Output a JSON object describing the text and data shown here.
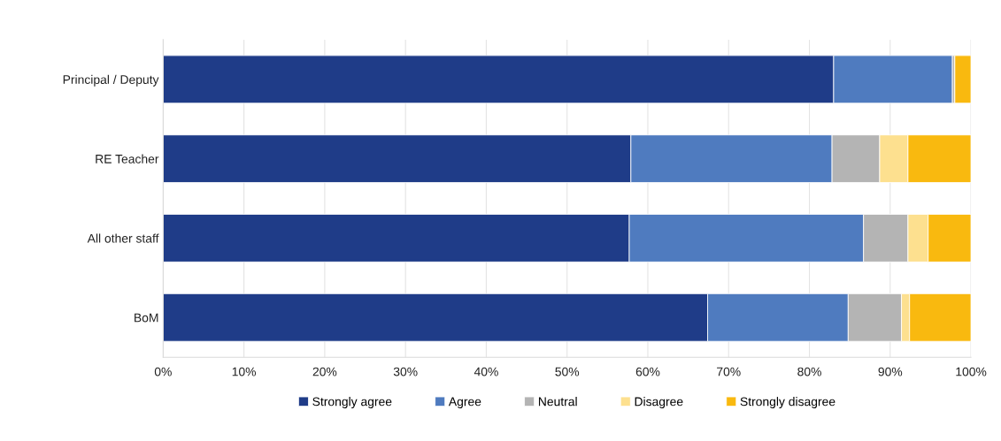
{
  "chart_data": {
    "type": "bar",
    "orientation": "horizontal",
    "stacked": true,
    "categories": [
      "Principal / Deputy",
      "RE Teacher",
      "All other staff",
      "BoM"
    ],
    "series": [
      {
        "name": "Strongly agree",
        "color": "#1f3c88",
        "values": [
          83.0,
          57.9,
          57.7,
          67.4
        ]
      },
      {
        "name": "Agree",
        "color": "#4f7bbf",
        "values": [
          14.7,
          24.9,
          29.0,
          17.4
        ]
      },
      {
        "name": "Neutral",
        "color": "#b4b4b4",
        "values": [
          0.3,
          5.9,
          5.5,
          6.6
        ]
      },
      {
        "name": "Disagree",
        "color": "#fde08f",
        "values": [
          0,
          3.5,
          2.5,
          1.0
        ]
      },
      {
        "name": "Strongly disagree",
        "color": "#f9b90f",
        "values": [
          2.0,
          7.8,
          5.3,
          7.6
        ]
      }
    ],
    "xlim": [
      0,
      100
    ],
    "xticks": [
      {
        "value": 0,
        "label": "0%"
      },
      {
        "value": 10,
        "label": "10%"
      },
      {
        "value": 20,
        "label": "20%"
      },
      {
        "value": 30,
        "label": "30%"
      },
      {
        "value": 40,
        "label": "40%"
      },
      {
        "value": 50,
        "label": "50%"
      },
      {
        "value": 60,
        "label": "60%"
      },
      {
        "value": 70,
        "label": "70%"
      },
      {
        "value": 80,
        "label": "80%"
      },
      {
        "value": 90,
        "label": "90%"
      },
      {
        "value": 100,
        "label": "100%"
      }
    ],
    "grid": "x",
    "legend": "bottom"
  }
}
